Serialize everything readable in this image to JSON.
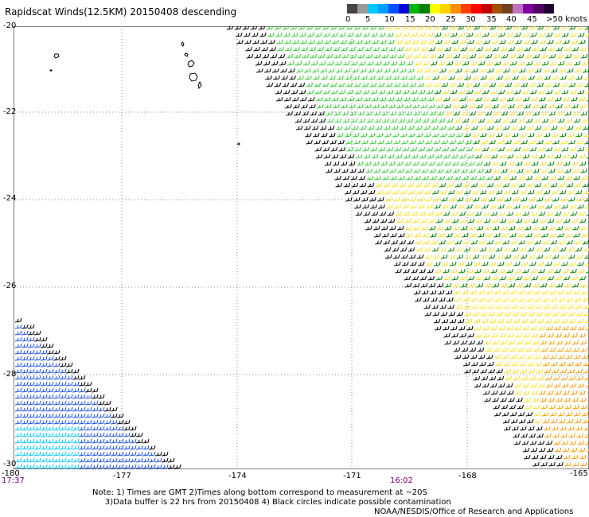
{
  "title": "Rapidscat Winds(12.5KM) 20150408 descending",
  "colorbar": {
    "colors": [
      "#444444",
      "#9a9a9a",
      "#00c8ff",
      "#00a0ff",
      "#0050ff",
      "#0000d8",
      "#00b400",
      "#008000",
      "#ffff00",
      "#ffd000",
      "#ff9000",
      "#ff4000",
      "#ff0000",
      "#c00000",
      "#a05000",
      "#704020",
      "#c070c0",
      "#8000a0",
      "#500060",
      "#200030"
    ],
    "labels": [
      "0",
      "5",
      "10",
      "15",
      "20",
      "25",
      "30",
      "35",
      "40",
      "45",
      ">50 knots"
    ]
  },
  "axes": {
    "y_labels": [
      "-20",
      "-22",
      "-24",
      "-26",
      "-28",
      "-30"
    ],
    "x_labels": [
      "-180",
      "-177",
      "-174",
      "-171",
      "-168",
      "-165"
    ]
  },
  "times": {
    "left": "17:37",
    "mid": "16:02"
  },
  "note": "Note: 1) Times are GMT 2)Times along bottom correspond to measurement at ~20S\n     3)Data buffer is 22 hrs from 20150408 4) Black circles indicate possible contamination",
  "credit": "NOAA/NESDIS/Office of Research and Applications",
  "legend_colors": {
    "black": "#000000",
    "green_light": "#33cc33",
    "green_dark": "#008000",
    "yellow": "#ffe020",
    "orange": "#ff9a00",
    "blue": "#1a4de6",
    "cyan": "#00c8ff"
  }
}
